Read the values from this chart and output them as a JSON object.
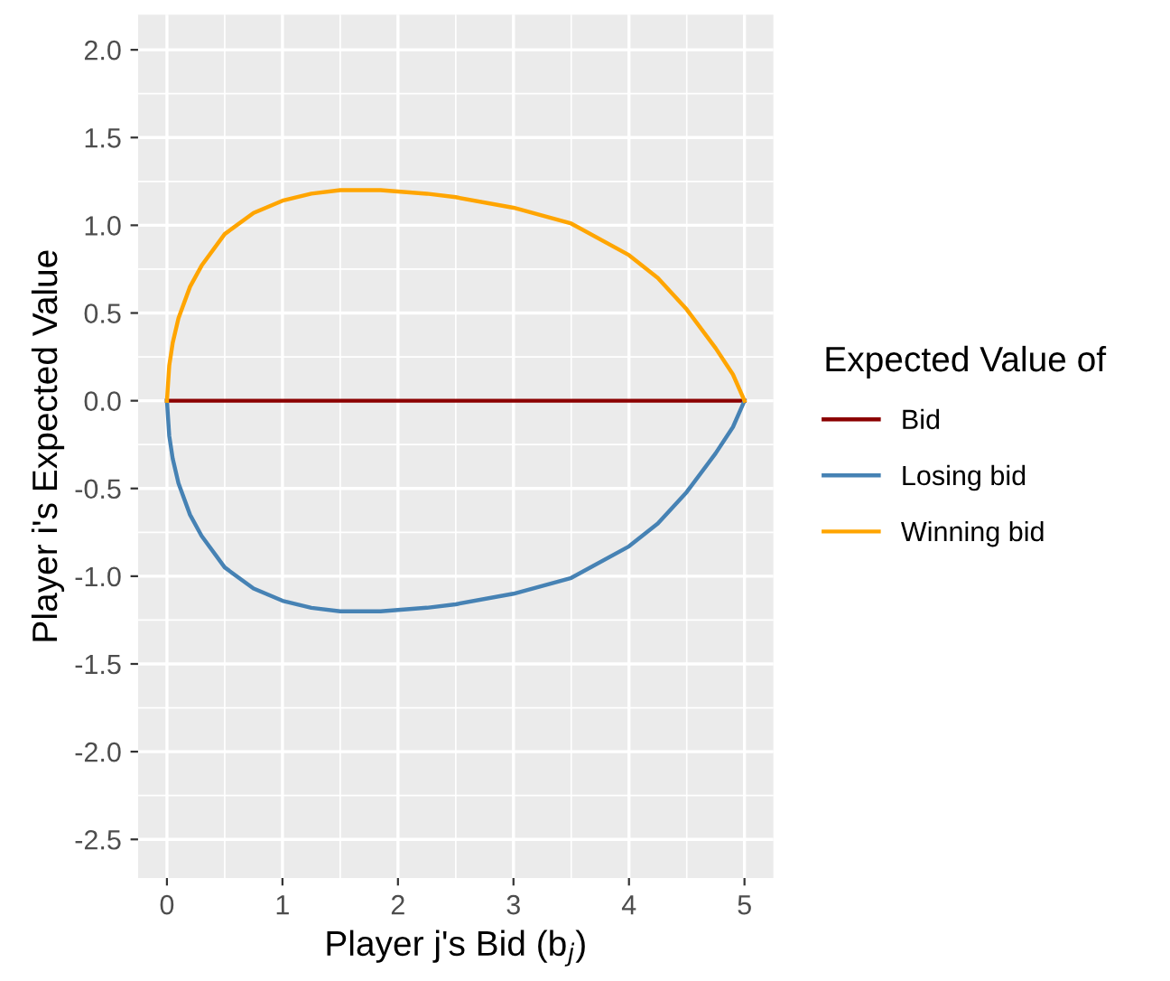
{
  "chart_data": {
    "type": "line",
    "xlabel": "Player j's Bid (b$_{j}$)",
    "ylabel": "Player i's Expected Value",
    "legend_title": "Expected Value of",
    "legend": "right",
    "grid": true,
    "xlim": [
      -0.25,
      5.25
    ],
    "ylim": [
      -2.72,
      2.2
    ],
    "xticks": [
      0,
      1,
      2,
      3,
      4,
      5
    ],
    "yticks": [
      {
        "value": -2.5,
        "label": "-2.5"
      },
      {
        "value": -2.0,
        "label": "-2.0"
      },
      {
        "value": -1.5,
        "label": "-1.5"
      },
      {
        "value": -1.0,
        "label": "-1.0"
      },
      {
        "value": -0.5,
        "label": "-0.5"
      },
      {
        "value": 0,
        "label": "0.0"
      },
      {
        "value": 0.5,
        "label": "0.5"
      },
      {
        "value": 1.0,
        "label": "1.0"
      },
      {
        "value": 1.5,
        "label": "1.5"
      },
      {
        "value": 2.0,
        "label": "2.0"
      }
    ],
    "series": [
      {
        "name": "Bid",
        "color": "#8b0000",
        "x": [
          0,
          5
        ],
        "values": [
          0,
          0
        ]
      },
      {
        "name": "Losing bid",
        "color": "#4682b4",
        "x": [
          0,
          0.02,
          0.05,
          0.1,
          0.2,
          0.3,
          0.5,
          0.75,
          1,
          1.25,
          1.5,
          1.85,
          2.25,
          2.5,
          3,
          3.5,
          4,
          4.25,
          4.5,
          4.75,
          4.9,
          5
        ],
        "values": [
          0,
          -0.2,
          -0.33,
          -0.47,
          -0.65,
          -0.77,
          -0.95,
          -1.07,
          -1.14,
          -1.18,
          -1.2,
          -1.2,
          -1.18,
          -1.16,
          -1.1,
          -1.01,
          -0.83,
          -0.7,
          -0.52,
          -0.3,
          -0.15,
          0
        ]
      },
      {
        "name": "Winning bid",
        "color": "#ffa500",
        "x": [
          0,
          0.02,
          0.05,
          0.1,
          0.2,
          0.3,
          0.5,
          0.75,
          1,
          1.25,
          1.5,
          1.85,
          2.25,
          2.5,
          3,
          3.5,
          4,
          4.25,
          4.5,
          4.75,
          4.9,
          5
        ],
        "values": [
          0,
          0.2,
          0.33,
          0.47,
          0.65,
          0.77,
          0.95,
          1.07,
          1.14,
          1.18,
          1.2,
          1.2,
          1.18,
          1.16,
          1.1,
          1.01,
          0.83,
          0.7,
          0.52,
          0.3,
          0.15,
          0
        ]
      }
    ]
  }
}
